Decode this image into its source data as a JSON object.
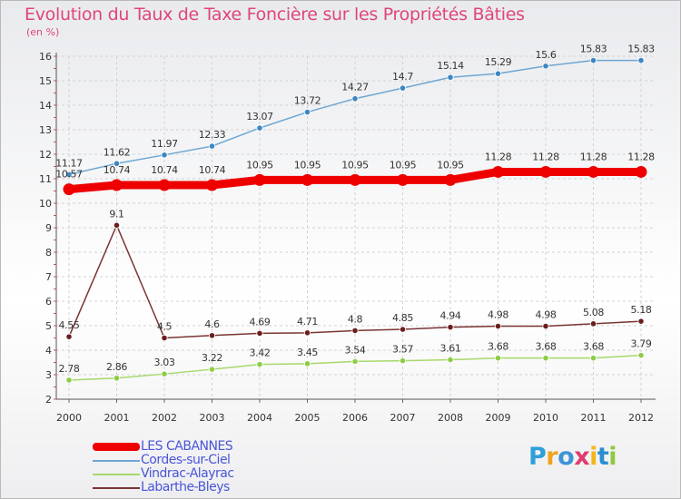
{
  "chart_data": {
    "type": "line",
    "title": "Evolution du Taux de Taxe Foncière sur les Propriétés Bâties",
    "ylabel": "(en %)",
    "xlabel": "",
    "ylim": [
      2,
      16
    ],
    "yticks": [
      "2",
      "3",
      "4",
      "5",
      "6",
      "7",
      "8",
      "9",
      "10",
      "11",
      "12",
      "13",
      "14",
      "15",
      "16"
    ],
    "categories": [
      "2000",
      "2001",
      "2002",
      "2003",
      "2004",
      "2005",
      "2006",
      "2007",
      "2008",
      "2009",
      "2010",
      "2011",
      "2012"
    ],
    "series": [
      {
        "name": "LES CABANNES",
        "color": "#ee0000",
        "dot_color": "#ee0000",
        "width": 9,
        "values": [
          10.57,
          10.74,
          10.74,
          10.74,
          10.95,
          10.95,
          10.95,
          10.95,
          10.95,
          11.28,
          11.28,
          11.28,
          11.28
        ],
        "labels": [
          "10.57",
          "10.74",
          "10.74",
          "10.74",
          "10.95",
          "10.95",
          "10.95",
          "10.95",
          "10.95",
          "11.28",
          "11.28",
          "11.28",
          "11.28"
        ]
      },
      {
        "name": "Cordes-sur-Ciel",
        "color": "#6ea7d2",
        "dot_color": "#3d86c2",
        "width": 1.5,
        "values": [
          11.17,
          11.62,
          11.97,
          12.33,
          13.07,
          13.72,
          14.27,
          14.7,
          15.14,
          15.29,
          15.6,
          15.83,
          15.83
        ],
        "labels": [
          "11.17",
          "11.62",
          "11.97",
          "12.33",
          "13.07",
          "13.72",
          "14.27",
          "14.7",
          "15.14",
          "15.29",
          "15.6",
          "15.83",
          "15.83"
        ]
      },
      {
        "name": "Vindrac-Alayrac",
        "color": "#a7d86a",
        "dot_color": "#8dcc45",
        "width": 1.5,
        "values": [
          2.78,
          2.86,
          3.03,
          3.22,
          3.42,
          3.45,
          3.54,
          3.57,
          3.61,
          3.68,
          3.68,
          3.68,
          3.79
        ],
        "labels": [
          "2.78",
          "2.86",
          "3.03",
          "3.22",
          "3.42",
          "3.45",
          "3.54",
          "3.57",
          "3.61",
          "3.68",
          "3.68",
          "3.68",
          "3.79"
        ]
      },
      {
        "name": "Labarthe-Bleys",
        "color": "#7a3434",
        "dot_color": "#6b1e1e",
        "width": 1.5,
        "values": [
          4.55,
          9.1,
          4.5,
          4.6,
          4.69,
          4.71,
          4.8,
          4.85,
          4.94,
          4.98,
          4.98,
          5.08,
          5.18
        ],
        "labels": [
          "4.55",
          "9.1",
          "4.5",
          "4.6",
          "4.69",
          "4.71",
          "4.8",
          "4.85",
          "4.94",
          "4.98",
          "4.98",
          "5.08",
          "5.18"
        ]
      }
    ],
    "grid": true,
    "legend_position": "bottom-left"
  },
  "logo": {
    "letters": [
      "P",
      "r",
      "o",
      "x",
      "i",
      "t",
      "i"
    ]
  }
}
